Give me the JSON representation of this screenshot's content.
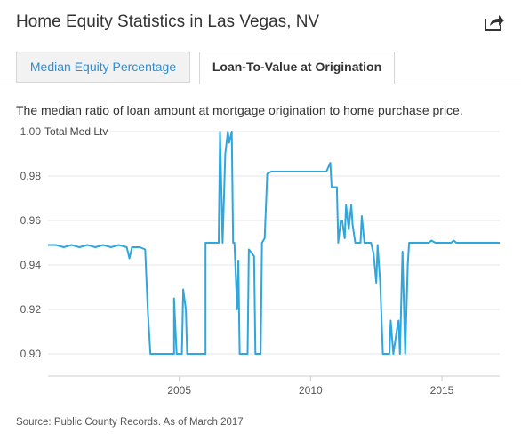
{
  "header": {
    "title": "Home Equity Statistics in Las Vegas, NV"
  },
  "tabs": [
    {
      "label": "Median Equity Percentage",
      "active": false
    },
    {
      "label": "Loan-To-Value at Origination",
      "active": true
    }
  ],
  "description": "The median ratio of loan amount at mortgage origination to home purchase price.",
  "source": "Source: Public County Records. As of March 2017",
  "colors": {
    "line": "#2ea6de",
    "accent_link": "#2a8fd6"
  },
  "chart_data": {
    "type": "line",
    "series": [
      {
        "name": "Total Med Ltv",
        "points": [
          [
            2000.0,
            0.949
          ],
          [
            2000.3,
            0.949
          ],
          [
            2000.6,
            0.948
          ],
          [
            2000.9,
            0.949
          ],
          [
            2001.2,
            0.948
          ],
          [
            2001.5,
            0.949
          ],
          [
            2001.8,
            0.948
          ],
          [
            2002.1,
            0.949
          ],
          [
            2002.4,
            0.948
          ],
          [
            2002.7,
            0.949
          ],
          [
            2003.0,
            0.948
          ],
          [
            2003.1,
            0.943
          ],
          [
            2003.2,
            0.948
          ],
          [
            2003.5,
            0.948
          ],
          [
            2003.7,
            0.947
          ],
          [
            2003.8,
            0.92
          ],
          [
            2003.9,
            0.9
          ],
          [
            2004.2,
            0.9
          ],
          [
            2004.6,
            0.9
          ],
          [
            2004.8,
            0.9
          ],
          [
            2004.8,
            0.925
          ],
          [
            2004.9,
            0.9
          ],
          [
            2005.1,
            0.9
          ],
          [
            2005.15,
            0.929
          ],
          [
            2005.25,
            0.92
          ],
          [
            2005.3,
            0.9
          ],
          [
            2005.5,
            0.9
          ],
          [
            2005.8,
            0.9
          ],
          [
            2006.0,
            0.9
          ],
          [
            2006.0,
            0.95
          ],
          [
            2006.3,
            0.95
          ],
          [
            2006.5,
            0.95
          ],
          [
            2006.55,
            1.0
          ],
          [
            2006.65,
            0.95
          ],
          [
            2006.75,
            0.99
          ],
          [
            2006.85,
            1.0
          ],
          [
            2006.9,
            0.995
          ],
          [
            2007.0,
            1.0
          ],
          [
            2007.05,
            0.95
          ],
          [
            2007.1,
            0.95
          ],
          [
            2007.2,
            0.92
          ],
          [
            2007.25,
            0.942
          ],
          [
            2007.3,
            0.9
          ],
          [
            2007.4,
            0.9
          ],
          [
            2007.6,
            0.9
          ],
          [
            2007.65,
            0.947
          ],
          [
            2007.85,
            0.944
          ],
          [
            2007.9,
            0.9
          ],
          [
            2008.1,
            0.9
          ],
          [
            2008.15,
            0.95
          ],
          [
            2008.25,
            0.952
          ],
          [
            2008.35,
            0.981
          ],
          [
            2008.5,
            0.982
          ],
          [
            2009.0,
            0.982
          ],
          [
            2009.5,
            0.982
          ],
          [
            2010.0,
            0.982
          ],
          [
            2010.6,
            0.982
          ],
          [
            2010.75,
            0.986
          ],
          [
            2010.8,
            0.975
          ],
          [
            2011.0,
            0.975
          ],
          [
            2011.05,
            0.95
          ],
          [
            2011.15,
            0.96
          ],
          [
            2011.2,
            0.96
          ],
          [
            2011.3,
            0.952
          ],
          [
            2011.35,
            0.967
          ],
          [
            2011.45,
            0.956
          ],
          [
            2011.55,
            0.967
          ],
          [
            2011.6,
            0.958
          ],
          [
            2011.7,
            0.95
          ],
          [
            2011.8,
            0.95
          ],
          [
            2011.9,
            0.95
          ],
          [
            2011.95,
            0.962
          ],
          [
            2012.05,
            0.95
          ],
          [
            2012.3,
            0.95
          ],
          [
            2012.4,
            0.945
          ],
          [
            2012.5,
            0.932
          ],
          [
            2012.55,
            0.949
          ],
          [
            2012.65,
            0.932
          ],
          [
            2012.75,
            0.9
          ],
          [
            2013.0,
            0.9
          ],
          [
            2013.05,
            0.915
          ],
          [
            2013.15,
            0.9
          ],
          [
            2013.3,
            0.912
          ],
          [
            2013.35,
            0.915
          ],
          [
            2013.4,
            0.9
          ],
          [
            2013.5,
            0.946
          ],
          [
            2013.6,
            0.9
          ],
          [
            2013.7,
            0.94
          ],
          [
            2013.75,
            0.95
          ],
          [
            2014.0,
            0.95
          ],
          [
            2014.5,
            0.95
          ],
          [
            2014.6,
            0.951
          ],
          [
            2014.75,
            0.95
          ],
          [
            2015.0,
            0.95
          ],
          [
            2015.35,
            0.95
          ],
          [
            2015.45,
            0.951
          ],
          [
            2015.55,
            0.95
          ],
          [
            2016.0,
            0.95
          ],
          [
            2016.5,
            0.95
          ],
          [
            2017.2,
            0.95
          ]
        ]
      }
    ],
    "ylim": [
      0.89,
      1.0
    ],
    "y_ticks": [
      "0.90",
      "0.92",
      "0.94",
      "0.96",
      "0.98",
      "1.00"
    ],
    "xlim": [
      2000.0,
      2017.2
    ],
    "x_ticks": [
      "2005",
      "2010",
      "2015"
    ],
    "legend": "top-left",
    "grid": "horizontal"
  }
}
